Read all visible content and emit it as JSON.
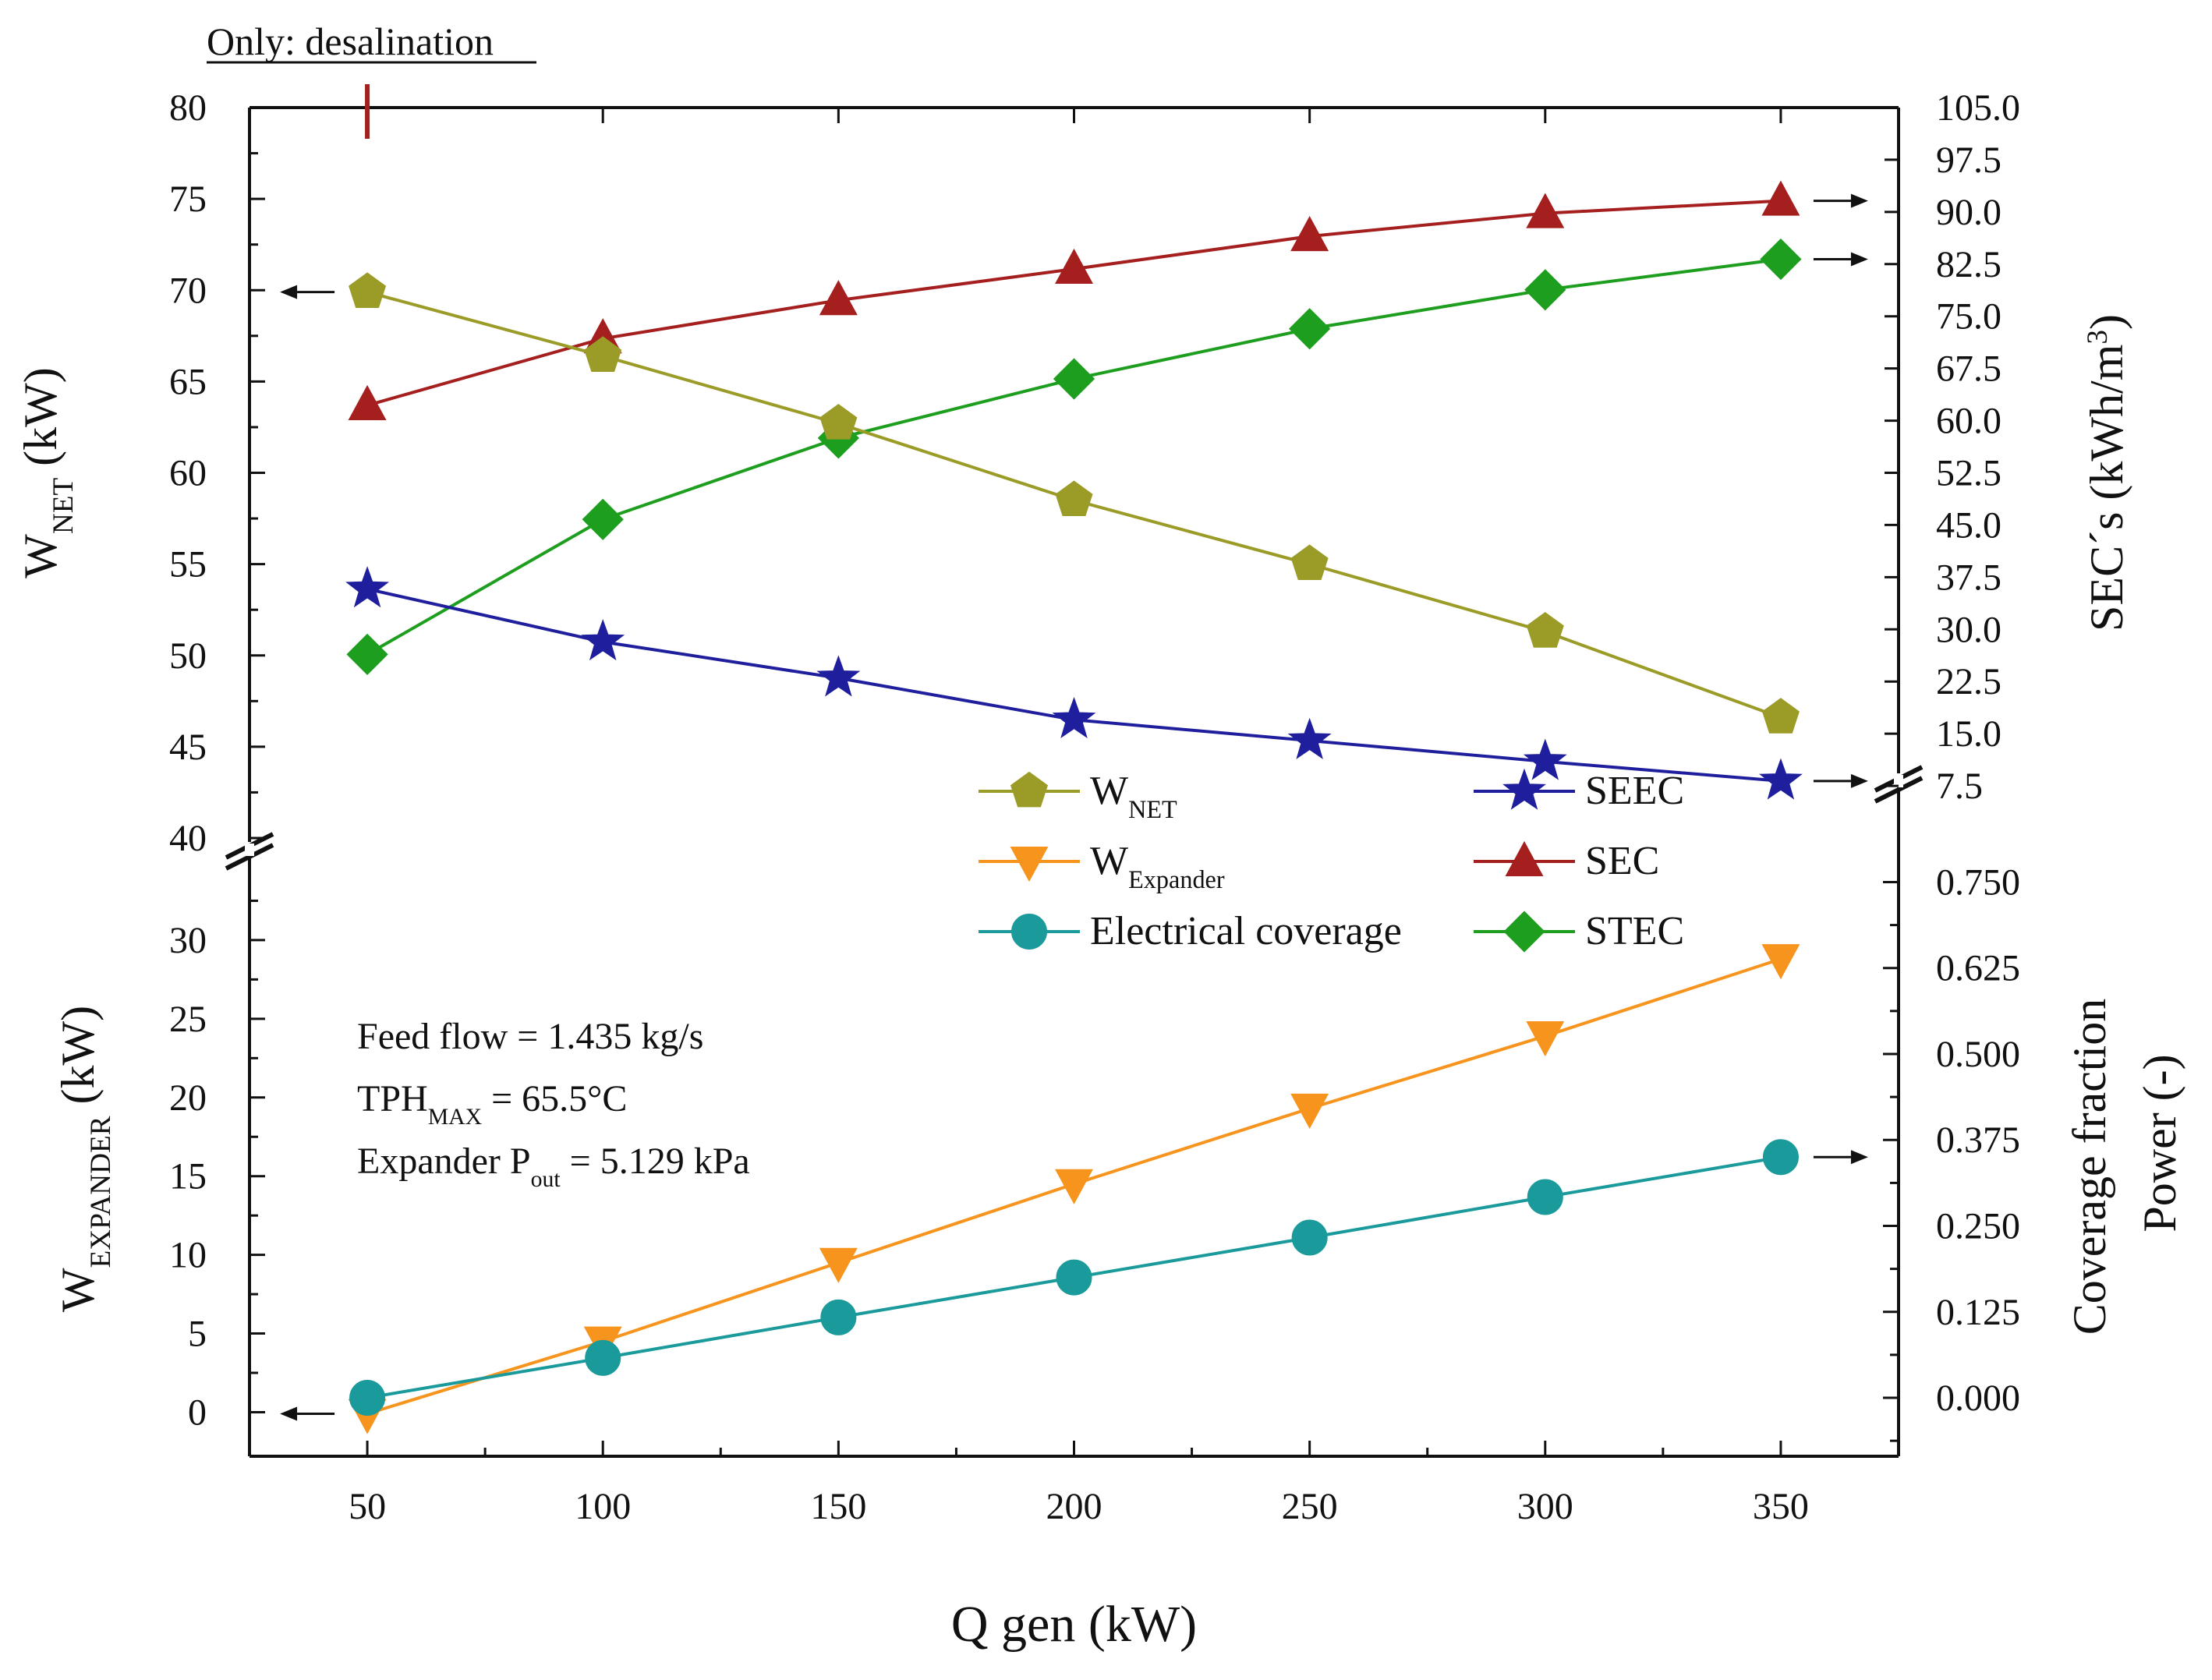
{
  "chart_data": {
    "type": "line",
    "annotation_top": "Only: desalination",
    "x": [
      50,
      100,
      150,
      200,
      250,
      300,
      350
    ],
    "x_ticks": [
      "50",
      "100",
      "150",
      "200",
      "250",
      "300",
      "350"
    ],
    "xlabel": "Q gen (kW)",
    "upper_panel": {
      "left_axis": {
        "label_main": "W",
        "label_sub": "NET",
        "label_unit": " (kW)",
        "range": [
          40,
          80
        ],
        "ticks": [
          "40",
          "45",
          "50",
          "55",
          "60",
          "65",
          "70",
          "75",
          "80"
        ]
      },
      "right_axis": {
        "label": "SEC´s (kWh/m",
        "label_sup": "3",
        "label_close": ")",
        "range": [
          0,
          105
        ],
        "ticks": [
          "7.5",
          "15.0",
          "22.5",
          "30.0",
          "37.5",
          "45.0",
          "52.5",
          "60.0",
          "67.5",
          "75.0",
          "82.5",
          "90.0",
          "97.5",
          "105.0"
        ]
      },
      "series": [
        {
          "name": "W",
          "name_sub": "NET",
          "axis": "left",
          "color": "#9b9b27",
          "marker": "pentagon",
          "values": [
            69.9,
            66.4,
            62.7,
            58.5,
            55.0,
            51.3,
            46.6
          ]
        },
        {
          "name": "SEEC",
          "axis": "right",
          "color": "#1f1f9e",
          "marker": "star",
          "values": [
            35.8,
            28.2,
            23.0,
            17.0,
            14.0,
            11.0,
            8.2
          ]
        },
        {
          "name": "SEC",
          "axis": "right",
          "color": "#a51f1f",
          "marker": "triangle-up",
          "values": [
            62.2,
            71.8,
            77.3,
            81.8,
            86.5,
            89.8,
            91.6
          ]
        },
        {
          "name": "STEC",
          "axis": "right",
          "color": "#1e9e1e",
          "marker": "diamond",
          "values": [
            26.4,
            45.8,
            57.5,
            66.0,
            73.2,
            78.8,
            83.2
          ]
        }
      ]
    },
    "lower_panel": {
      "left_axis": {
        "label_main": "W",
        "label_sub": "EXPANDER",
        "label_unit": " (kW)",
        "range": [
          -2.8,
          35
        ],
        "ticks": [
          "0",
          "5",
          "10",
          "15",
          "20",
          "25",
          "30"
        ]
      },
      "right_axis": {
        "label_line1": "Coverage fraction",
        "label_line2": "Power (-)",
        "range": [
          -0.085,
          0.78
        ],
        "ticks": [
          "0.000",
          "0.125",
          "0.250",
          "0.375",
          "0.500",
          "0.625",
          "0.750"
        ]
      },
      "series": [
        {
          "name": "W",
          "name_sub": "Expander",
          "axis": "left",
          "color": "#f7941d",
          "marker": "triangle-down",
          "values": [
            -0.1,
            4.5,
            9.5,
            14.5,
            19.3,
            23.9,
            28.8
          ]
        },
        {
          "name": "Electrical coverage",
          "axis": "right",
          "color": "#1a9a9a",
          "marker": "circle",
          "values": [
            0.0,
            0.058,
            0.117,
            0.175,
            0.233,
            0.292,
            0.35
          ]
        }
      ],
      "textbox": {
        "line1": "Feed flow = 1.435 kg/s",
        "line2_a": "TPH",
        "line2_sub": "MAX",
        "line2_b": " = 65.5°C",
        "line3_a": "Expander P",
        "line3_sub": "out",
        "line3_b": " = 5.129 kPa"
      }
    },
    "legend": {
      "placement": "center-right",
      "entries": [
        {
          "key": "wnet",
          "label": "W",
          "sub": "NET"
        },
        {
          "key": "seec",
          "label": "SEEC"
        },
        {
          "key": "wexp",
          "label": "W",
          "sub": "Expander"
        },
        {
          "key": "sec",
          "label": "SEC"
        },
        {
          "key": "elec",
          "label": "Electrical coverage"
        },
        {
          "key": "stec",
          "label": "STEC"
        }
      ]
    }
  }
}
